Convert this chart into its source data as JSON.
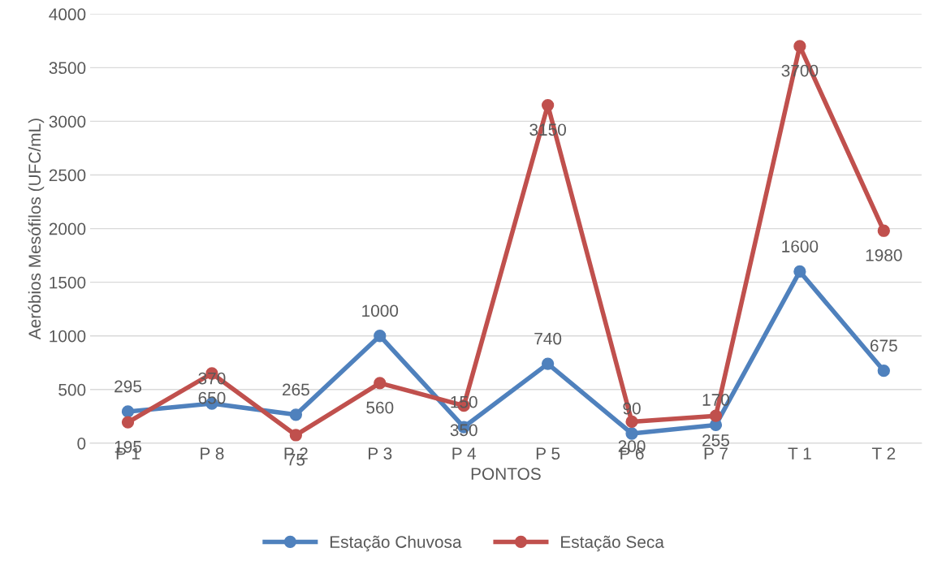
{
  "chart_data": {
    "type": "line",
    "xlabel": "PONTOS",
    "ylabel": "Aeróbios Mesófilos (UFC/mL)",
    "categories": [
      "P 1",
      "P 8",
      "P 2",
      "P 3",
      "P 4",
      "P 5",
      "P 6",
      "P 7",
      "T 1",
      "T 2"
    ],
    "series": [
      {
        "name": "Estação Chuvosa",
        "color": "#4f81bd",
        "values": [
          295,
          370,
          265,
          1000,
          150,
          740,
          90,
          170,
          1600,
          675
        ]
      },
      {
        "name": "Estação Seca",
        "color": "#c0504d",
        "values": [
          195,
          650,
          75,
          560,
          350,
          3150,
          200,
          255,
          3700,
          1980
        ]
      }
    ],
    "ylim": [
      0,
      4000
    ],
    "yticks": [
      0,
      500,
      1000,
      1500,
      2000,
      2500,
      3000,
      3500,
      4000
    ],
    "grid": "y",
    "legend": "bottom",
    "marker": "circle",
    "line_style": "solid",
    "data_labels": true
  }
}
